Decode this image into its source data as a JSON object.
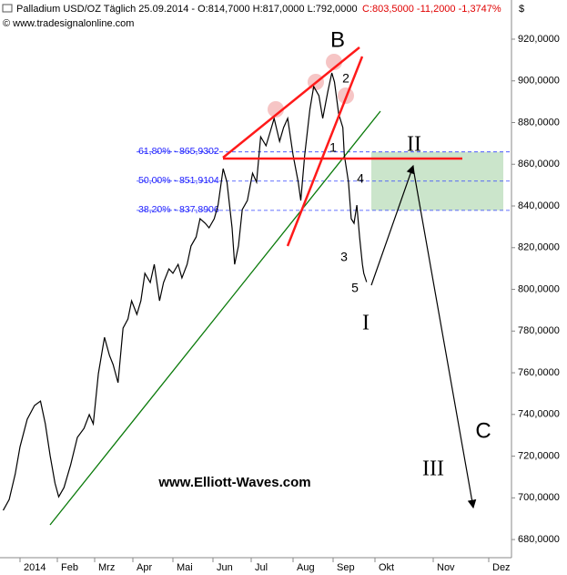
{
  "chart_data": {
    "type": "line",
    "title": "Palladium USD/OZ Täglich  25.09.2014 - O:814,7000 H:817,0000 L:792,0000",
    "title_change": "C:803,5000 -11,2000 -1,3747%",
    "source": "© www.tradesignalonline.com",
    "y_unit": "$",
    "color": "#000000",
    "x": [
      -13,
      -8,
      -3,
      1,
      7,
      13,
      18,
      22,
      26,
      30,
      33,
      37,
      42,
      47,
      52,
      56,
      59,
      63,
      68,
      72,
      75,
      79,
      83,
      87,
      90,
      94,
      97,
      100,
      104,
      107,
      111,
      114,
      118,
      121,
      125,
      128,
      132,
      135,
      139,
      142,
      146,
      149,
      153,
      156,
      160,
      163,
      167,
      169,
      172,
      175,
      179,
      183,
      186,
      189,
      193,
      196,
      199,
      203,
      206,
      209,
      213,
      217,
      219,
      222,
      226,
      229,
      233,
      236,
      240,
      243,
      245,
      248,
      251,
      252,
      255,
      257,
      259,
      261,
      263,
      265,
      266,
      268
    ],
    "values": [
      694.0,
      699.2,
      711.4,
      724.5,
      737.7,
      744.3,
      746.4,
      735.5,
      720.2,
      707.1,
      700.5,
      704.9,
      715.8,
      729.0,
      733.3,
      739.9,
      735.5,
      759.6,
      777.0,
      768.3,
      763.9,
      755.2,
      781.4,
      785.8,
      794.5,
      788.0,
      794.5,
      807.7,
      803.3,
      812.0,
      794.5,
      803.3,
      809.8,
      807.7,
      812.0,
      805.5,
      812.0,
      820.8,
      825.1,
      833.9,
      831.7,
      829.5,
      833.9,
      840.4,
      857.9,
      851.4,
      829.5,
      812.0,
      820.8,
      838.3,
      842.6,
      855.7,
      851.4,
      873.2,
      868.9,
      875.4,
      882.0,
      871.0,
      877.6,
      882.0,
      864.5,
      851.4,
      842.6,
      864.5,
      886.3,
      897.3,
      892.9,
      882.0,
      895.1,
      903.8,
      899.5,
      884.2,
      877.6,
      864.5,
      851.4,
      833.9,
      831.7,
      840.4,
      825.1,
      812.0,
      807.7,
      803.5
    ],
    "xlim": [
      -15,
      365
    ],
    "xticks": [
      {
        "value": 1,
        "label": "2014"
      },
      {
        "value": 32,
        "label": "Feb"
      },
      {
        "value": 60,
        "label": "Mrz"
      },
      {
        "value": 91,
        "label": "Apr"
      },
      {
        "value": 121,
        "label": "Mai"
      },
      {
        "value": 152,
        "label": "Jun"
      },
      {
        "value": 182,
        "label": "Jul"
      },
      {
        "value": 213,
        "label": "Aug"
      },
      {
        "value": 244,
        "label": "Sep"
      },
      {
        "value": 274,
        "label": "Okt"
      },
      {
        "value": 305,
        "label": "Nov"
      },
      {
        "value": 335,
        "label": "Dez"
      }
    ],
    "ylim": [
      671.3,
      936.6
    ],
    "yticks": [
      {
        "value": 680,
        "label": "680,0000"
      },
      {
        "value": 700,
        "label": "700,0000"
      },
      {
        "value": 720,
        "label": "720,0000"
      },
      {
        "value": 740,
        "label": "740,0000"
      },
      {
        "value": 760,
        "label": "760,0000"
      },
      {
        "value": 780,
        "label": "780,0000"
      },
      {
        "value": 800,
        "label": "800,0000"
      },
      {
        "value": 820,
        "label": "820,0000"
      },
      {
        "value": 840,
        "label": "840,0000"
      },
      {
        "value": 860,
        "label": "860,0000"
      },
      {
        "value": 880,
        "label": "880,0000"
      },
      {
        "value": 900,
        "label": "900,0000"
      },
      {
        "value": 920,
        "label": "920,0000"
      }
    ],
    "fib_levels": [
      {
        "value": 865.9302,
        "label": "61,80% - 865,9302"
      },
      {
        "value": 851.9104,
        "label": "50,00% - 851,9104"
      },
      {
        "value": 837.8906,
        "label": "38,20% - 837,8906"
      }
    ],
    "annotations": [
      "B",
      "2",
      "1",
      "4",
      "3",
      "5",
      "I",
      "II",
      "III",
      "C",
      "www.Elliott-Waves.com"
    ]
  }
}
